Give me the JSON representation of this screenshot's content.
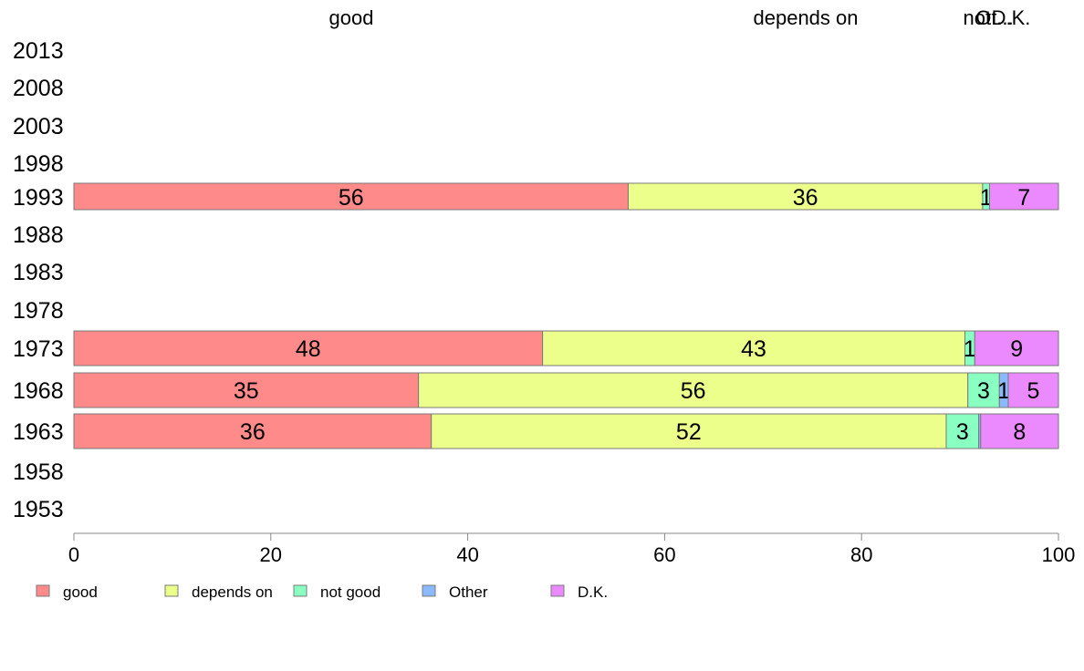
{
  "chart_data": {
    "type": "bar",
    "orientation": "horizontal",
    "stacked": true,
    "categories": [
      "2013",
      "2008",
      "2003",
      "1998",
      "1993",
      "1988",
      "1983",
      "1978",
      "1973",
      "1968",
      "1963",
      "1958",
      "1953"
    ],
    "series": [
      {
        "name": "good",
        "color": "#ff8a8a",
        "values": [
          null,
          null,
          null,
          null,
          56.3,
          null,
          null,
          null,
          47.6,
          35.0,
          36.3,
          null,
          null
        ],
        "labels": [
          "",
          "",
          "",
          "",
          "56",
          "",
          "",
          "",
          "48",
          "35",
          "36",
          "",
          ""
        ]
      },
      {
        "name": "depends on",
        "color": "#ebff8a",
        "values": [
          null,
          null,
          null,
          null,
          36.0,
          null,
          null,
          null,
          42.9,
          55.8,
          52.3,
          null,
          null
        ],
        "labels": [
          "",
          "",
          "",
          "",
          "36",
          "",
          "",
          "",
          "43",
          "56",
          "52",
          "",
          ""
        ]
      },
      {
        "name": "not good",
        "color": "#8affc2",
        "values": [
          null,
          null,
          null,
          null,
          0.7,
          null,
          null,
          null,
          1.0,
          3.2,
          3.3,
          null,
          null
        ],
        "labels": [
          "",
          "",
          "",
          "",
          "1",
          "",
          "",
          "",
          "1",
          "3",
          "3",
          "",
          ""
        ]
      },
      {
        "name": "Other",
        "color": "#8ab9ff",
        "values": [
          null,
          null,
          null,
          null,
          0.0,
          null,
          null,
          null,
          0.0,
          0.9,
          0.2,
          null,
          null
        ],
        "labels": [
          "",
          "",
          "",
          "",
          "",
          "",
          "",
          "",
          "",
          "1",
          "",
          "",
          ""
        ]
      },
      {
        "name": "D.K.",
        "color": "#eb8aff",
        "values": [
          null,
          null,
          null,
          null,
          7.0,
          null,
          null,
          null,
          8.5,
          5.1,
          7.9,
          null,
          null
        ],
        "labels": [
          "",
          "",
          "",
          "",
          "7",
          "",
          "",
          "",
          "9",
          "5",
          "8",
          "",
          ""
        ]
      }
    ],
    "top_labels": [
      "good",
      "depends on",
      "not...",
      "Ot...",
      "D.K."
    ],
    "xlim": [
      0,
      100
    ],
    "xticks": [
      "0",
      "20",
      "40",
      "60",
      "80",
      "100"
    ],
    "grid": false,
    "legend": "bottom-left"
  }
}
